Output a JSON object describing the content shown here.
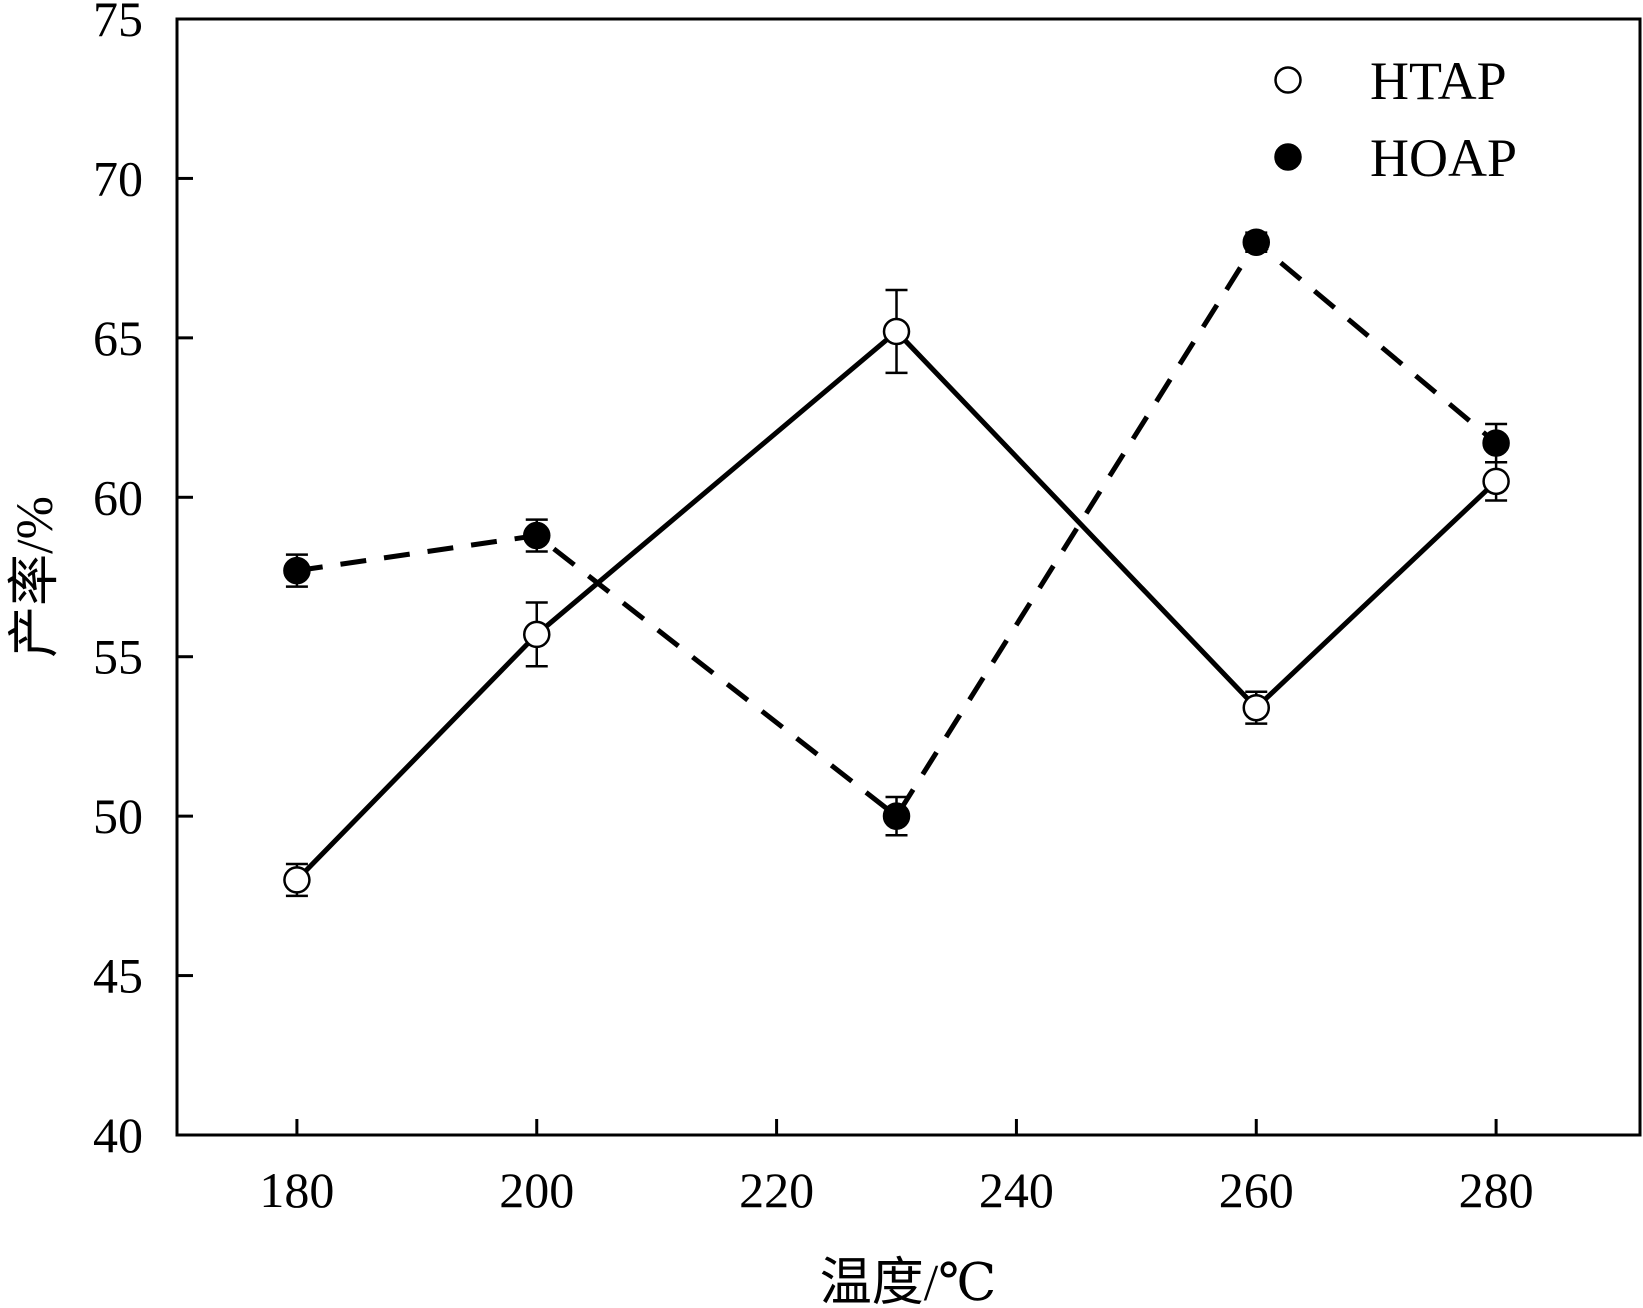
{
  "chart_data": {
    "type": "line",
    "xlabel": "温度/℃",
    "ylabel": "产率/%",
    "xlim": [
      170,
      292
    ],
    "ylim": [
      40,
      75
    ],
    "x_ticks": [
      180,
      200,
      220,
      240,
      260,
      280
    ],
    "y_ticks": [
      40,
      45,
      50,
      55,
      60,
      65,
      70,
      75
    ],
    "grid": false,
    "legend_position": "top-right",
    "series": [
      {
        "name": "HTAP",
        "marker": "open-circle",
        "line_style": "solid",
        "x": [
          180,
          200,
          230,
          260,
          280
        ],
        "y": [
          48.0,
          55.7,
          65.2,
          53.4,
          60.5
        ],
        "error": [
          0.5,
          1.0,
          1.3,
          0.5,
          0.6
        ]
      },
      {
        "name": "HOAP",
        "marker": "filled-circle",
        "line_style": "dashed",
        "x": [
          180,
          200,
          230,
          260,
          280
        ],
        "y": [
          57.7,
          58.8,
          50.0,
          68.0,
          61.7
        ],
        "error": [
          0.5,
          0.5,
          0.6,
          0.3,
          0.6
        ]
      }
    ]
  },
  "colors": {
    "line": "#000000",
    "open_marker_fill": "#ffffff",
    "background": "#ffffff"
  }
}
